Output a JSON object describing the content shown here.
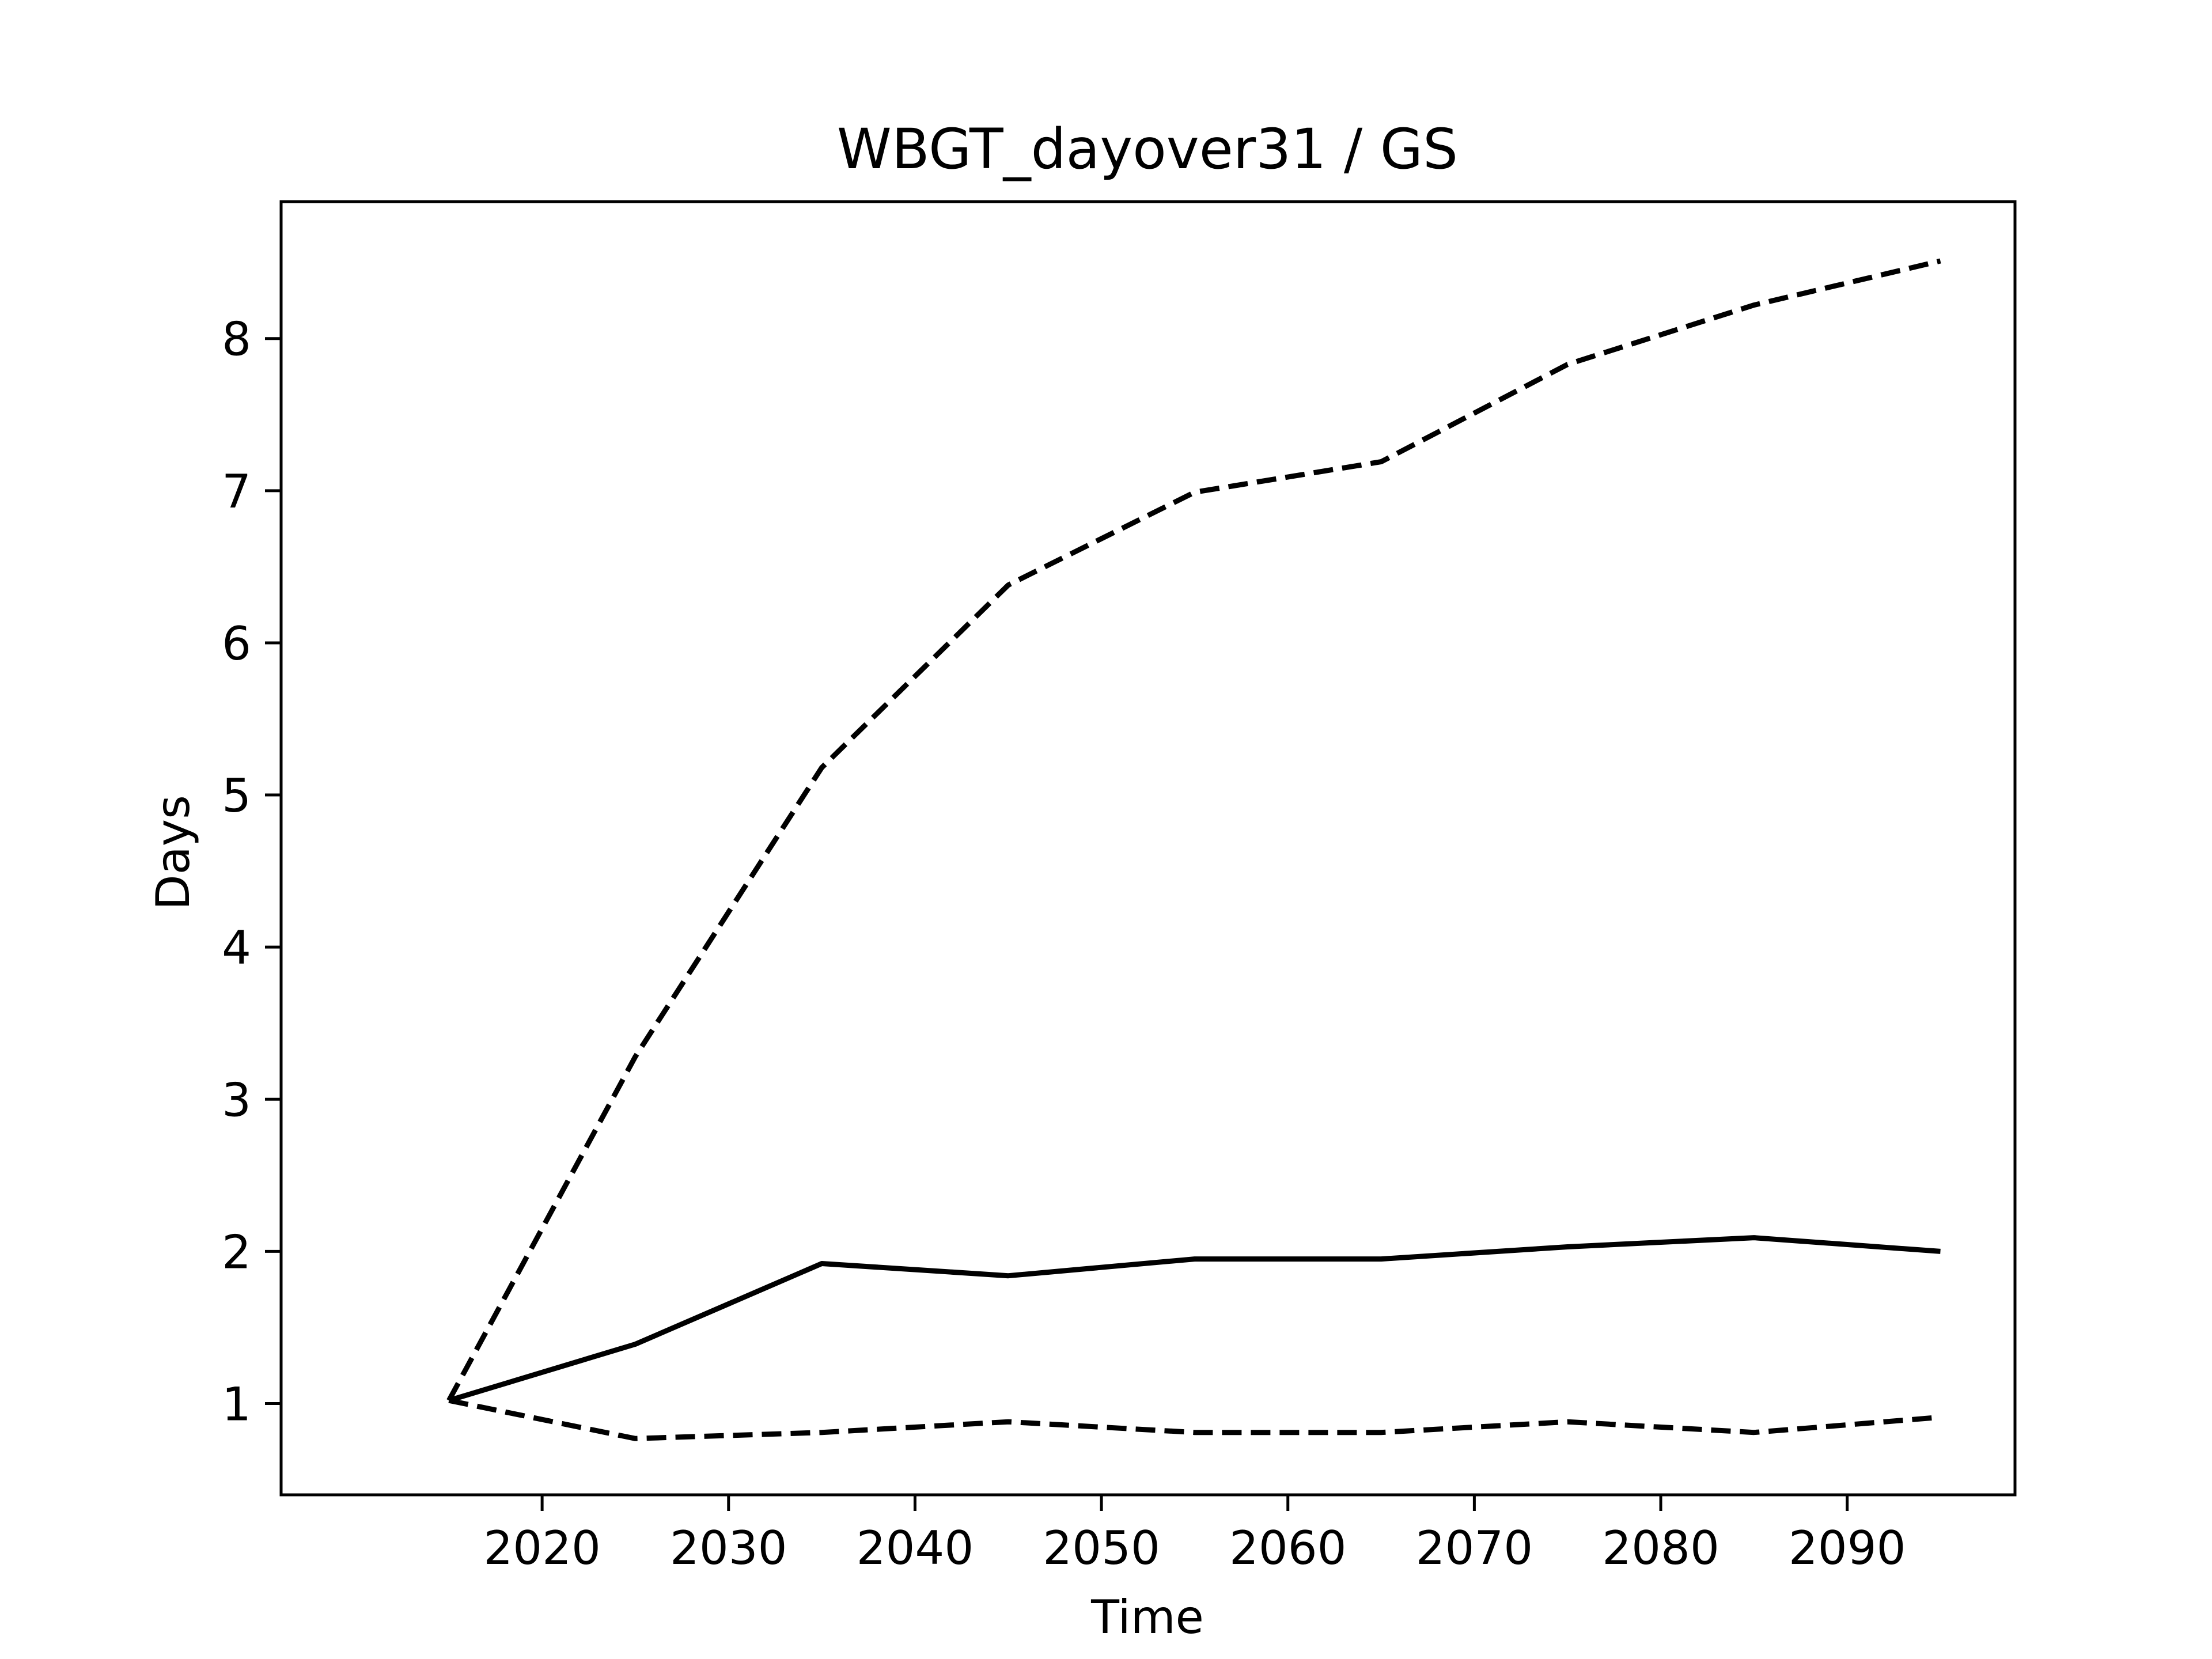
{
  "chart_data": {
    "type": "line",
    "title": "WBGT_dayover31 / GS",
    "xlabel": "Time",
    "ylabel": "Days",
    "x": [
      2015,
      2025,
      2035,
      2045,
      2055,
      2065,
      2075,
      2085,
      2095
    ],
    "xlim": [
      2006,
      2099
    ],
    "ylim": [
      0.4,
      8.9
    ],
    "xticks": [
      2020,
      2030,
      2040,
      2050,
      2060,
      2070,
      2080,
      2090
    ],
    "yticks": [
      1,
      2,
      3,
      4,
      5,
      6,
      7,
      8
    ],
    "grid": false,
    "series": [
      {
        "style": "solid",
        "color": "#000000",
        "values": [
          1.02,
          1.39,
          1.92,
          1.84,
          1.95,
          1.95,
          2.03,
          2.09,
          2.0
        ]
      },
      {
        "style": "dashed",
        "color": "#000000",
        "values": [
          1.02,
          3.28,
          5.18,
          6.38,
          6.99,
          7.19,
          7.83,
          8.22,
          8.51
        ]
      },
      {
        "style": "dashed",
        "color": "#000000",
        "values": [
          1.02,
          0.77,
          0.81,
          0.88,
          0.81,
          0.81,
          0.88,
          0.81,
          0.91
        ]
      }
    ]
  }
}
